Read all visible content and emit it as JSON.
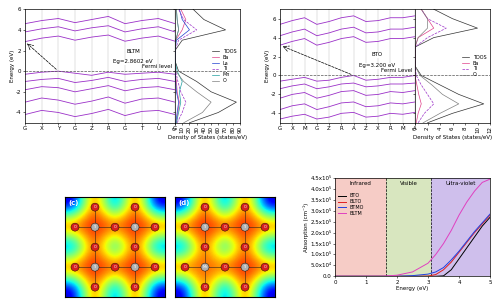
{
  "chart_data": [
    {
      "type": "band_structure",
      "name": "BLTM",
      "gap_label": "Eg=2.8602 eV",
      "fermi_label": "Fermi level",
      "fermi_level": 0,
      "ylabel": "Energy (eV)",
      "color": "#9b30c8",
      "x": [
        0,
        1,
        2,
        3,
        4,
        5,
        6,
        7,
        8,
        9
      ],
      "xlim": [
        0,
        9
      ],
      "xticks": [
        {
          "value": 0,
          "label": "G"
        },
        {
          "value": 1,
          "label": "X"
        },
        {
          "value": 2,
          "label": "Y"
        },
        {
          "value": 3,
          "label": "G"
        },
        {
          "value": 4,
          "label": "Z"
        },
        {
          "value": 5,
          "label": "R"
        },
        {
          "value": 6,
          "label": "G"
        },
        {
          "value": 7,
          "label": "T"
        },
        {
          "value": 8,
          "label": "U"
        },
        {
          "value": 9,
          "label": "G"
        }
      ],
      "ylim": [
        -5,
        6
      ],
      "yticks": [
        -4,
        -2,
        0,
        2,
        4,
        6
      ],
      "bands": [
        [
          -0.3,
          -0.1,
          0,
          -0.2,
          -0.4,
          -0.1,
          -0.3,
          -0.2,
          -0.1,
          -0.3
        ],
        [
          -1.0,
          -0.8,
          -0.7,
          -1.1,
          -0.9,
          -0.6,
          -1.0,
          -0.8,
          -0.7,
          -1.0
        ],
        [
          -1.8,
          -1.5,
          -1.6,
          -2.0,
          -1.7,
          -1.4,
          -1.9,
          -1.6,
          -1.5,
          -1.8
        ],
        [
          -3.0,
          -2.6,
          -2.8,
          -3.2,
          -2.9,
          -2.5,
          -3.1,
          -2.7,
          -2.6,
          -3.0
        ],
        [
          -4.2,
          -3.8,
          -4.0,
          -4.4,
          -4.1,
          -3.7,
          -4.3,
          -3.9,
          -3.8,
          -4.2
        ],
        [
          2.86,
          3.2,
          3.4,
          3.0,
          3.3,
          3.5,
          2.9,
          3.2,
          3.4,
          2.9
        ],
        [
          3.8,
          4.1,
          4.3,
          3.9,
          4.2,
          4.4,
          3.8,
          4.1,
          4.3,
          3.8
        ],
        [
          4.6,
          4.9,
          5.1,
          4.7,
          5.0,
          5.3,
          4.6,
          4.9,
          5.1,
          4.6
        ]
      ],
      "dos": {
        "xlabel": "Density of States (states/eV)",
        "xlim": [
          0,
          90
        ],
        "xticks": [
          0,
          10,
          20,
          30,
          40,
          50,
          60,
          70,
          80,
          90
        ],
        "tick_labels": "x",
        "legend": "center right",
        "energy": [
          -5,
          -4,
          -3,
          -2,
          -1,
          0,
          1,
          2,
          3,
          4,
          5,
          6
        ],
        "series": [
          {
            "name": "TDOS",
            "color": "#333333",
            "values": [
              20,
              60,
              85,
              50,
              30,
              5,
              0,
              0,
              10,
              70,
              40,
              25
            ]
          },
          {
            "name": "Ba",
            "color": "#e0408a",
            "values": [
              2,
              4,
              6,
              3,
              2,
              0,
              0,
              0,
              1,
              10,
              15,
              8
            ]
          },
          {
            "name": "La",
            "color": "#2040d0",
            "values": [
              1,
              3,
              5,
              2,
              1,
              0,
              0,
              0,
              2,
              20,
              10,
              6
            ]
          },
          {
            "name": "Ti",
            "color": "#9b30c8",
            "line_style": "dashed",
            "values": [
              3,
              10,
              15,
              8,
              4,
              1,
              0,
              0,
              5,
              30,
              12,
              5
            ]
          },
          {
            "name": "Mn",
            "color": "#20a0a0",
            "values": [
              2,
              5,
              8,
              6,
              10,
              3,
              0,
              0,
              1,
              5,
              3,
              2
            ]
          },
          {
            "name": "O",
            "color": "#808080",
            "values": [
              12,
              38,
              50,
              30,
              12,
              1,
              0,
              0,
              1,
              5,
              3,
              2
            ]
          }
        ]
      }
    },
    {
      "type": "band_structure",
      "name": "BTO",
      "gap_label": "Eg=3.200 eV",
      "fermi_label": "Fermi Level",
      "fermi_level": 0,
      "ylabel": "Energy (eV)",
      "color": "#9b30c8",
      "x": [
        0,
        1,
        2,
        3,
        4,
        5,
        6,
        7,
        8,
        9,
        10,
        11
      ],
      "xlim": [
        0,
        11
      ],
      "xticks": [
        {
          "value": 0,
          "label": "G"
        },
        {
          "value": 1,
          "label": "X"
        },
        {
          "value": 2,
          "label": "M"
        },
        {
          "value": 3,
          "label": "G"
        },
        {
          "value": 4,
          "label": "Z"
        },
        {
          "value": 5,
          "label": "R"
        },
        {
          "value": 6,
          "label": "A"
        },
        {
          "value": 7,
          "label": "Z"
        },
        {
          "value": 8,
          "label": "X"
        },
        {
          "value": 9,
          "label": "R"
        },
        {
          "value": 10,
          "label": "M"
        },
        {
          "value": 11,
          "label": "A"
        }
      ],
      "ylim": [
        -5,
        7
      ],
      "yticks": [
        -4,
        -2,
        0,
        2,
        4,
        6
      ],
      "bands": [
        [
          -0.6,
          -0.4,
          -0.2,
          -0.6,
          -0.5,
          -0.2,
          0,
          -0.5,
          -0.4,
          -0.2,
          -0.2,
          0
        ],
        [
          -1.4,
          -1.1,
          -0.9,
          -1.4,
          -1.2,
          -0.9,
          -0.8,
          -1.2,
          -1.1,
          -0.9,
          -0.9,
          -0.8
        ],
        [
          -2.4,
          -2.0,
          -1.8,
          -2.4,
          -2.1,
          -1.7,
          -1.6,
          -2.1,
          -2.0,
          -1.7,
          -1.8,
          -1.6
        ],
        [
          -3.6,
          -3.2,
          -3.0,
          -3.6,
          -3.3,
          -2.9,
          -2.8,
          -3.3,
          -3.2,
          -2.9,
          -3.0,
          -2.8
        ],
        [
          -4.6,
          -4.3,
          -4.1,
          -4.6,
          -4.4,
          -4.0,
          -3.9,
          -4.4,
          -4.3,
          -4.0,
          -4.1,
          -3.9
        ],
        [
          3.2,
          3.6,
          3.9,
          3.2,
          3.5,
          3.9,
          4.1,
          3.5,
          3.6,
          3.9,
          3.9,
          4.1
        ],
        [
          4.2,
          4.6,
          4.9,
          4.2,
          4.5,
          4.9,
          5.1,
          4.5,
          4.6,
          4.9,
          4.9,
          5.1
        ],
        [
          5.4,
          5.8,
          6.1,
          5.4,
          5.7,
          6.1,
          6.3,
          5.7,
          5.8,
          6.1,
          6.1,
          6.3
        ]
      ],
      "dos": {
        "xlabel": "Density of States (states/eV)",
        "xlim": [
          0,
          12
        ],
        "xticks": [
          0,
          2,
          4,
          6,
          8,
          10,
          12
        ],
        "tick_labels": "x",
        "legend": "center right",
        "energy": [
          -5,
          -4,
          -3,
          -2,
          -1,
          0,
          1,
          2,
          3,
          4,
          5,
          6,
          7
        ],
        "series": [
          {
            "name": "TDOS",
            "color": "#333333",
            "values": [
              2,
              6,
              11,
              7,
              4,
              1,
              0,
              0,
              0,
              3,
              10,
              6,
              3
            ]
          },
          {
            "name": "Ba",
            "color": "#e0408a",
            "values": [
              0.2,
              0.5,
              1,
              0.6,
              0.3,
              0,
              0,
              0,
              0,
              0.5,
              3,
              2,
              1
            ]
          },
          {
            "name": "Ti",
            "color": "#9b30c8",
            "line_style": "dashed",
            "values": [
              0.5,
              1.5,
              3,
              2,
              1,
              0.2,
              0,
              0,
              0,
              2,
              5,
              2,
              1
            ]
          },
          {
            "name": "O",
            "color": "#808080",
            "values": [
              1.3,
              4,
              7,
              4.4,
              2.7,
              0.8,
              0,
              0,
              0,
              0.5,
              2,
              2,
              1
            ]
          }
        ]
      }
    },
    {
      "type": "heatmap",
      "label": "(c)",
      "tick_labels": false,
      "atom_colors": {
        "O": "#d62020",
        "Ti": "#b0b0b0"
      },
      "cells": [
        [
          0.1,
          1.0,
          0.1,
          1.0,
          0.1
        ],
        [
          1.0,
          0.9,
          1.0,
          0.9,
          1.0
        ],
        [
          0.1,
          1.0,
          0.1,
          1.0,
          0.1
        ],
        [
          1.0,
          0.9,
          1.0,
          0.9,
          1.0
        ],
        [
          0.1,
          1.0,
          0.1,
          1.0,
          0.1
        ]
      ],
      "sites": [
        [
          null,
          "O",
          null,
          "O",
          null
        ],
        [
          "O",
          "Ti",
          "O",
          "Ti",
          "O"
        ],
        [
          null,
          "O",
          null,
          "O",
          null
        ],
        [
          "O",
          "Ti",
          "O",
          "Ti",
          "O"
        ],
        [
          null,
          "O",
          null,
          "O",
          null
        ]
      ]
    },
    {
      "type": "heatmap",
      "label": "(d)",
      "tick_labels": false,
      "atom_colors": {
        "O": "#d62020",
        "Ti": "#b0b0b0",
        "Mn": "#b0b0b0"
      },
      "cells": [
        [
          0.1,
          1.0,
          0.1,
          1.0,
          0.1
        ],
        [
          1.0,
          0.9,
          1.0,
          0.9,
          1.0
        ],
        [
          0.1,
          1.0,
          0.1,
          1.0,
          0.1
        ],
        [
          1.0,
          0.8,
          1.0,
          0.9,
          1.0
        ],
        [
          0.1,
          1.0,
          0.1,
          1.0,
          0.1
        ]
      ],
      "sites": [
        [
          null,
          "O",
          null,
          "O",
          null
        ],
        [
          "O",
          "Ti",
          "O",
          "Ti",
          "O"
        ],
        [
          null,
          "O",
          null,
          "O",
          null
        ],
        [
          "O",
          "Mn",
          "O",
          "Ti",
          "O"
        ],
        [
          null,
          "O",
          null,
          "O",
          null
        ]
      ]
    },
    {
      "type": "line",
      "xlabel": "Energy (eV)",
      "ylabel": "Absorption (cm⁻¹)",
      "legend": "upper left",
      "xlim": [
        0,
        5
      ],
      "xticks": [
        0,
        1,
        2,
        3,
        4,
        5
      ],
      "ylim": [
        0,
        450000
      ],
      "yticks": [
        {
          "value": 0,
          "label": "0.0"
        },
        {
          "value": 50000,
          "label": "5.0x10⁴"
        },
        {
          "value": 100000,
          "label": "1.0x10⁵"
        },
        {
          "value": 150000,
          "label": "1.5x10⁵"
        },
        {
          "value": 200000,
          "label": "2.0x10⁵"
        },
        {
          "value": 250000,
          "label": "2.5x10⁵"
        },
        {
          "value": 300000,
          "label": "3.0x10⁵"
        },
        {
          "value": 350000,
          "label": "3.5x10⁵"
        },
        {
          "value": 400000,
          "label": "4.0x10⁵"
        },
        {
          "value": 450000,
          "label": "4.5x10⁵"
        }
      ],
      "regions": [
        {
          "label": "Infrared",
          "from": 0,
          "to": 1.65,
          "color": "#f4c0b8"
        },
        {
          "label": "Visible",
          "from": 1.65,
          "to": 3.1,
          "color": "#cfe0b0"
        },
        {
          "label": "Ultra-violet",
          "from": 3.1,
          "to": 5,
          "color": "#c4b0e8"
        }
      ],
      "x": [
        0,
        0.5,
        1,
        1.5,
        2,
        2.5,
        3,
        3.25,
        3.5,
        3.75,
        4,
        4.25,
        4.5,
        4.75,
        5
      ],
      "series": [
        {
          "name": "BTO",
          "color": "#000000",
          "values": [
            0,
            0,
            0,
            0,
            0,
            0,
            0,
            0,
            2000,
            30000,
            80000,
            130000,
            180000,
            230000,
            270000
          ]
        },
        {
          "name": "BLTO",
          "color": "#e02020",
          "values": [
            0,
            0,
            0,
            0,
            0,
            0,
            1000,
            8000,
            30000,
            65000,
            110000,
            155000,
            200000,
            240000,
            280000
          ]
        },
        {
          "name": "BTMO",
          "color": "#2040e0",
          "values": [
            0,
            0,
            0,
            0,
            0,
            3000,
            10000,
            20000,
            40000,
            75000,
            115000,
            160000,
            205000,
            245000,
            285000
          ]
        },
        {
          "name": "BLTM",
          "color": "#e040c0",
          "values": [
            0,
            0,
            0,
            0,
            5000,
            20000,
            60000,
            100000,
            150000,
            210000,
            280000,
            340000,
            390000,
            430000,
            445000
          ]
        }
      ]
    }
  ]
}
